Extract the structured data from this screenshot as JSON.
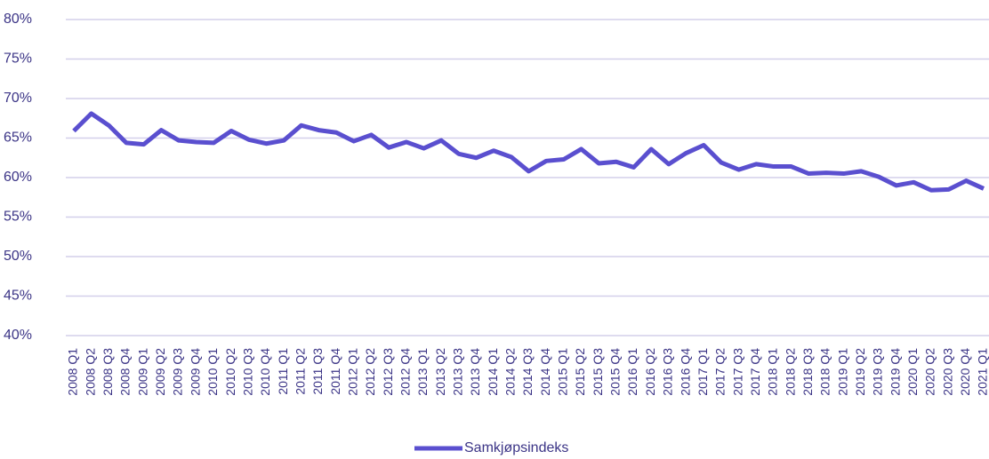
{
  "chart_data": {
    "type": "line",
    "categories": [
      "2008 Q1",
      "2008 Q2",
      "2008 Q3",
      "2008 Q4",
      "2009 Q1",
      "2009 Q2",
      "2009 Q3",
      "2009 Q4",
      "2010 Q1",
      "2010 Q2",
      "2010 Q3",
      "2010 Q4",
      "2011 Q1",
      "2011 Q2",
      "2011 Q3",
      "2011 Q4",
      "2012 Q1",
      "2012 Q2",
      "2012 Q3",
      "2012 Q4",
      "2013 Q1",
      "2013 Q2",
      "2013 Q3",
      "2013 Q4",
      "2014 Q1",
      "2014 Q2",
      "2014 Q3",
      "2014 Q4",
      "2015 Q1",
      "2015 Q2",
      "2015 Q3",
      "2015 Q4",
      "2016 Q1",
      "2016 Q2",
      "2016 Q3",
      "2016 Q4",
      "2017 Q1",
      "2017 Q2",
      "2017 Q3",
      "2017 Q4",
      "2018 Q1",
      "2018 Q2",
      "2018 Q3",
      "2018 Q4",
      "2019 Q1",
      "2019 Q2",
      "2019 Q3",
      "2019 Q4",
      "2020 Q1",
      "2020 Q2",
      "2020 Q3",
      "2020 Q4",
      "2021 Q1"
    ],
    "series": [
      {
        "name": "Samkjøpsindeks",
        "color": "#5a4fcf",
        "values": [
          65.9,
          68.1,
          66.6,
          64.4,
          64.2,
          66.0,
          64.7,
          64.5,
          64.4,
          65.9,
          64.8,
          64.3,
          64.7,
          66.6,
          66.0,
          65.7,
          64.6,
          65.4,
          63.8,
          64.5,
          63.7,
          64.7,
          63.0,
          62.5,
          63.4,
          62.6,
          60.8,
          62.1,
          62.3,
          63.6,
          61.8,
          62.0,
          61.3,
          63.6,
          61.7,
          63.1,
          64.1,
          61.9,
          61.0,
          61.7,
          61.4,
          61.4,
          60.5,
          60.6,
          60.5,
          60.8,
          60.1,
          59.0,
          59.4,
          58.4,
          58.5,
          59.6,
          58.6
        ]
      }
    ],
    "ylim": [
      40,
      80
    ],
    "yticks": [
      {
        "value": 40,
        "label": "40%"
      },
      {
        "value": 45,
        "label": "45%"
      },
      {
        "value": 50,
        "label": "50%"
      },
      {
        "value": 55,
        "label": "55%"
      },
      {
        "value": 60,
        "label": "60%"
      },
      {
        "value": 65,
        "label": "65%"
      },
      {
        "value": 70,
        "label": "70%"
      },
      {
        "value": 75,
        "label": "75%"
      },
      {
        "value": 80,
        "label": "80%"
      }
    ],
    "grid": true,
    "legend": "bottom"
  }
}
